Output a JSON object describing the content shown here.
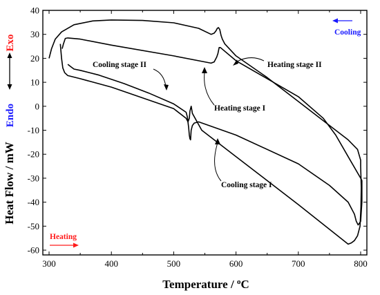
{
  "chart_data": {
    "type": "line",
    "title": "",
    "xlabel": "Temperature / ",
    "xlabel_unit": "C",
    "xlabel_sup": "o",
    "ylabel": "Heat Flow / mW",
    "xlim": [
      290,
      810
    ],
    "ylim": [
      -62,
      40
    ],
    "xticks": [
      300,
      400,
      500,
      600,
      700,
      800
    ],
    "yticks": [
      -60,
      -50,
      -40,
      -30,
      -20,
      -10,
      0,
      10,
      20,
      30,
      40
    ],
    "grid": false,
    "direction_labels": {
      "exo": "Exo",
      "endo": "Endo",
      "heating": "Heating",
      "cooling": "Cooling"
    },
    "annotations": [
      "Heating stage II",
      "Heating stage I",
      "Cooling stage II",
      "Cooling stage I"
    ],
    "colors": {
      "exo": "#ff1a1a",
      "endo": "#1a1aff",
      "heating": "#ff1a1a",
      "cooling": "#1a1aff",
      "line": "#000000"
    },
    "series": [
      {
        "x": [
          300,
          304,
          310,
          320,
          340,
          370,
          400,
          450,
          500,
          540,
          560,
          565,
          568,
          570,
          572,
          574,
          576,
          578,
          582,
          600,
          650,
          700,
          750,
          780,
          795,
          800,
          800,
          800.5,
          801,
          800.5,
          799,
          795,
          790,
          785,
          780,
          700,
          600,
          545,
          530,
          528,
          526,
          525,
          523,
          520,
          500,
          400,
          350,
          330,
          325,
          322,
          320,
          318
        ],
        "y": [
          20,
          24,
          28,
          31,
          34,
          35.6,
          36,
          35.8,
          34.8,
          32.5,
          30,
          30.5,
          31.5,
          32.5,
          32.8,
          32,
          29.5,
          28,
          26,
          21,
          12,
          2,
          -8,
          -14,
          -18,
          -22.5,
          -25,
          -29,
          -34,
          -42,
          -50,
          -54,
          -56,
          -57,
          -57.5,
          -41,
          -21,
          -10,
          -3,
          0,
          -2,
          -5,
          -6.5,
          -5,
          -1,
          8,
          11.5,
          12.8,
          14,
          16,
          20,
          26
        ]
      },
      {
        "x": [
          330,
          335,
          340,
          350,
          380,
          420,
          460,
          500,
          520,
          522,
          524,
          525,
          526,
          527,
          528,
          530,
          533,
          540,
          600,
          700,
          750,
          780,
          790,
          793,
          796,
          800,
          802,
          802,
          800,
          780,
          760,
          740,
          700,
          600,
          575,
          573,
          571,
          569,
          567,
          565,
          560,
          500,
          400,
          350,
          330,
          326,
          323,
          321
        ],
        "y": [
          17.5,
          16.5,
          15.5,
          15,
          13,
          9.5,
          5.5,
          1,
          -2.5,
          -4.5,
          -9,
          -12,
          -13.5,
          -14,
          -10,
          -8,
          -7,
          -6.5,
          -12,
          -24,
          -33,
          -40,
          -45,
          -48,
          -49.5,
          -48,
          -40,
          -31,
          -30,
          -21,
          -12,
          -5,
          4,
          19,
          24.5,
          24.5,
          22,
          20.5,
          19.5,
          18.5,
          18,
          21,
          25.5,
          28,
          28.5,
          28.3,
          26,
          24
        ]
      }
    ]
  }
}
